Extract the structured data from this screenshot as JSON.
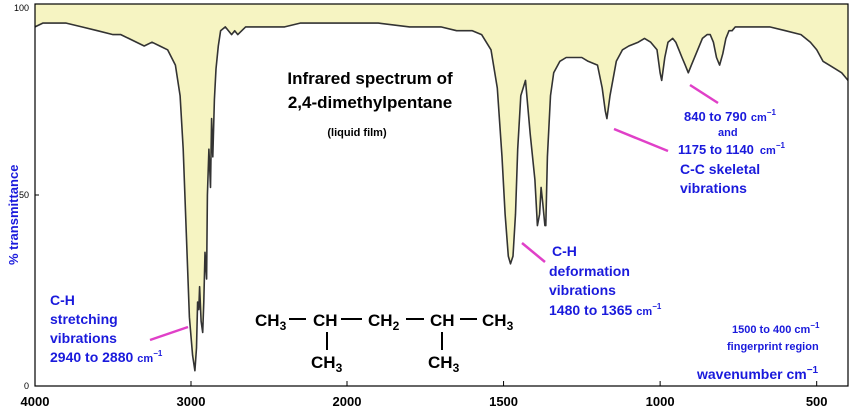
{
  "chart_data": {
    "type": "line",
    "title": "Infrared spectrum of",
    "title_line2": "2,4-dimethylpentane",
    "subtitle": "(liquid film)",
    "ylabel": "% transmittance",
    "xlabel": "wavenumber  cm",
    "xlabel_sup": "−1",
    "xlim": [
      4000,
      400
    ],
    "ylim": [
      0,
      100
    ],
    "x_ticks": [
      4000,
      3000,
      2000,
      1500,
      1000,
      500
    ],
    "y_ticks": [
      0,
      50,
      100
    ],
    "colors": {
      "line": "#333333",
      "fill": "#f6f4c2",
      "annotation": "#1a1adc",
      "pointer": "#e040c8"
    },
    "series": [
      {
        "x": [
          4000,
          3950,
          3900,
          3800,
          3700,
          3600,
          3500,
          3450,
          3400,
          3300,
          3250,
          3200,
          3150,
          3100,
          3070,
          3050,
          3030,
          3010,
          2990,
          2975,
          2965,
          2958,
          2950,
          2945,
          2935,
          2925,
          2918,
          2910,
          2900,
          2895,
          2885,
          2875,
          2868,
          2860,
          2850,
          2840,
          2825,
          2810,
          2780,
          2740,
          2720,
          2700,
          2650,
          2600,
          2500,
          2400,
          2300,
          2200,
          2100,
          2000,
          1900,
          1800,
          1700,
          1650,
          1600,
          1570,
          1540,
          1520,
          1505,
          1495,
          1485,
          1478,
          1470,
          1462,
          1455,
          1445,
          1430,
          1415,
          1400,
          1392,
          1385,
          1380,
          1375,
          1368,
          1365,
          1360,
          1350,
          1340,
          1320,
          1300,
          1280,
          1250,
          1230,
          1200,
          1185,
          1175,
          1170,
          1160,
          1140,
          1120,
          1100,
          1070,
          1050,
          1030,
          1010,
          1000,
          995,
          985,
          975,
          960,
          950,
          940,
          930,
          920,
          910,
          900,
          880,
          865,
          850,
          840,
          830,
          820,
          810,
          800,
          790,
          780,
          770,
          760,
          740,
          720,
          700,
          680,
          650,
          600,
          550,
          520,
          500,
          480,
          460,
          440,
          420,
          410,
          400
        ],
        "y": [
          94,
          95,
          95,
          95,
          94,
          93,
          92,
          92,
          91,
          89,
          90,
          89,
          88,
          84,
          76,
          62,
          40,
          18,
          8,
          4,
          10,
          22,
          20,
          26,
          17,
          14,
          22,
          35,
          28,
          50,
          62,
          52,
          70,
          60,
          75,
          83,
          89,
          93,
          94,
          92,
          93,
          92,
          94,
          94,
          94,
          94,
          95,
          95,
          95,
          95,
          95,
          94,
          94,
          93,
          93,
          92,
          88,
          78,
          60,
          45,
          34,
          32,
          34,
          45,
          62,
          76,
          80,
          66,
          54,
          42,
          45,
          52,
          48,
          42,
          42,
          60,
          76,
          82,
          85,
          86,
          86,
          86,
          85,
          84,
          78,
          72,
          70,
          76,
          85,
          88,
          89,
          90,
          91,
          90,
          88,
          82,
          80,
          86,
          90,
          91,
          90,
          88,
          86,
          84,
          82,
          84,
          88,
          91,
          92,
          92,
          90,
          86,
          84,
          87,
          91,
          93,
          93,
          94,
          94,
          94,
          94,
          94,
          94,
          93,
          92,
          90,
          88,
          85,
          84,
          83,
          82,
          81,
          80
        ]
      }
    ],
    "annotations": {
      "ch_stretch": [
        "C-H",
        "stretching",
        "vibrations",
        "2940 to 2880"
      ],
      "ch_deform": [
        "C-H",
        "deformation",
        "vibrations",
        "1480 to 1365"
      ],
      "cc_skel": [
        "840 to 790",
        "and",
        "1175 to 1140",
        "C-C skeletal",
        "vibrations"
      ],
      "unit": "cm",
      "unit_sup": "−1",
      "fingerprint": [
        "1500 to 400 cm",
        "fingerprint region"
      ]
    },
    "structure": {
      "main": [
        "CH",
        "3",
        "CH",
        "CH",
        "2",
        "CH",
        "CH",
        "3"
      ],
      "branch": [
        "CH",
        "3",
        "CH",
        "3"
      ]
    }
  }
}
